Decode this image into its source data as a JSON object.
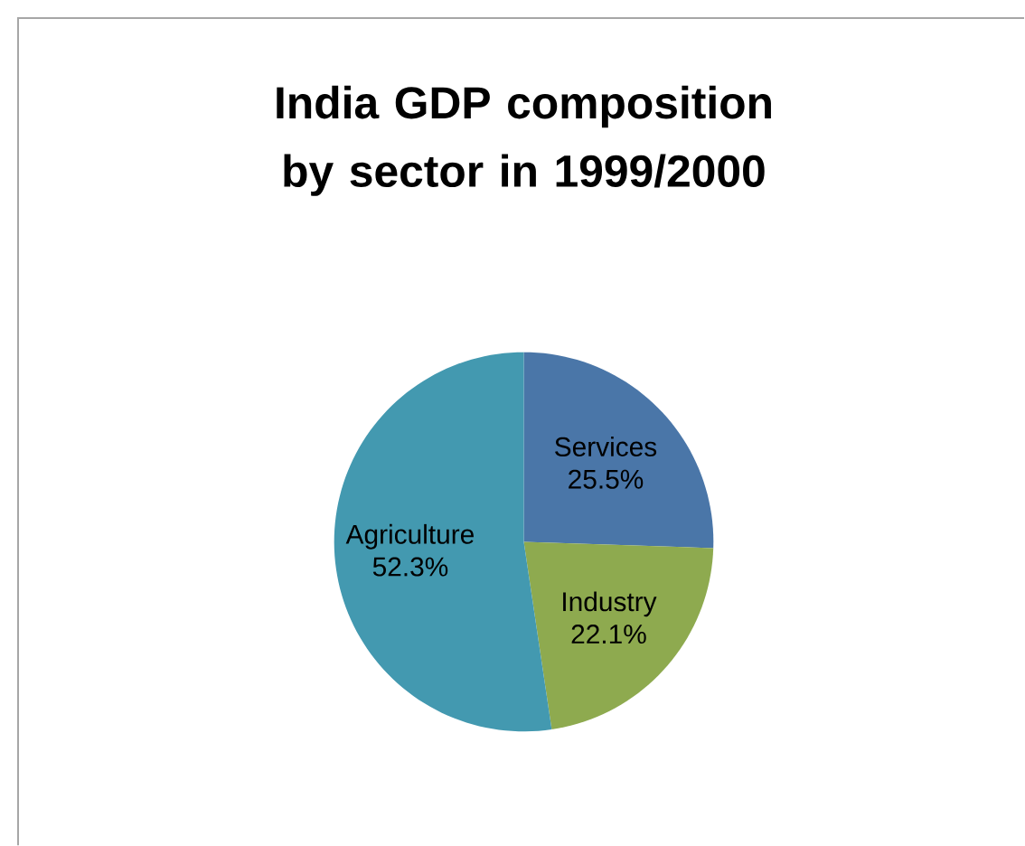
{
  "chart_data": {
    "type": "pie",
    "title": "India GDP composition by sector in 1999/2000",
    "categories": [
      "Services",
      "Industry",
      "Agriculture"
    ],
    "values": [
      25.5,
      22.1,
      52.3
    ],
    "colors": [
      "#4a76a8",
      "#8eaa4f",
      "#4399b0"
    ],
    "value_labels": [
      "25.5%",
      "22.1%",
      "52.3%"
    ]
  }
}
